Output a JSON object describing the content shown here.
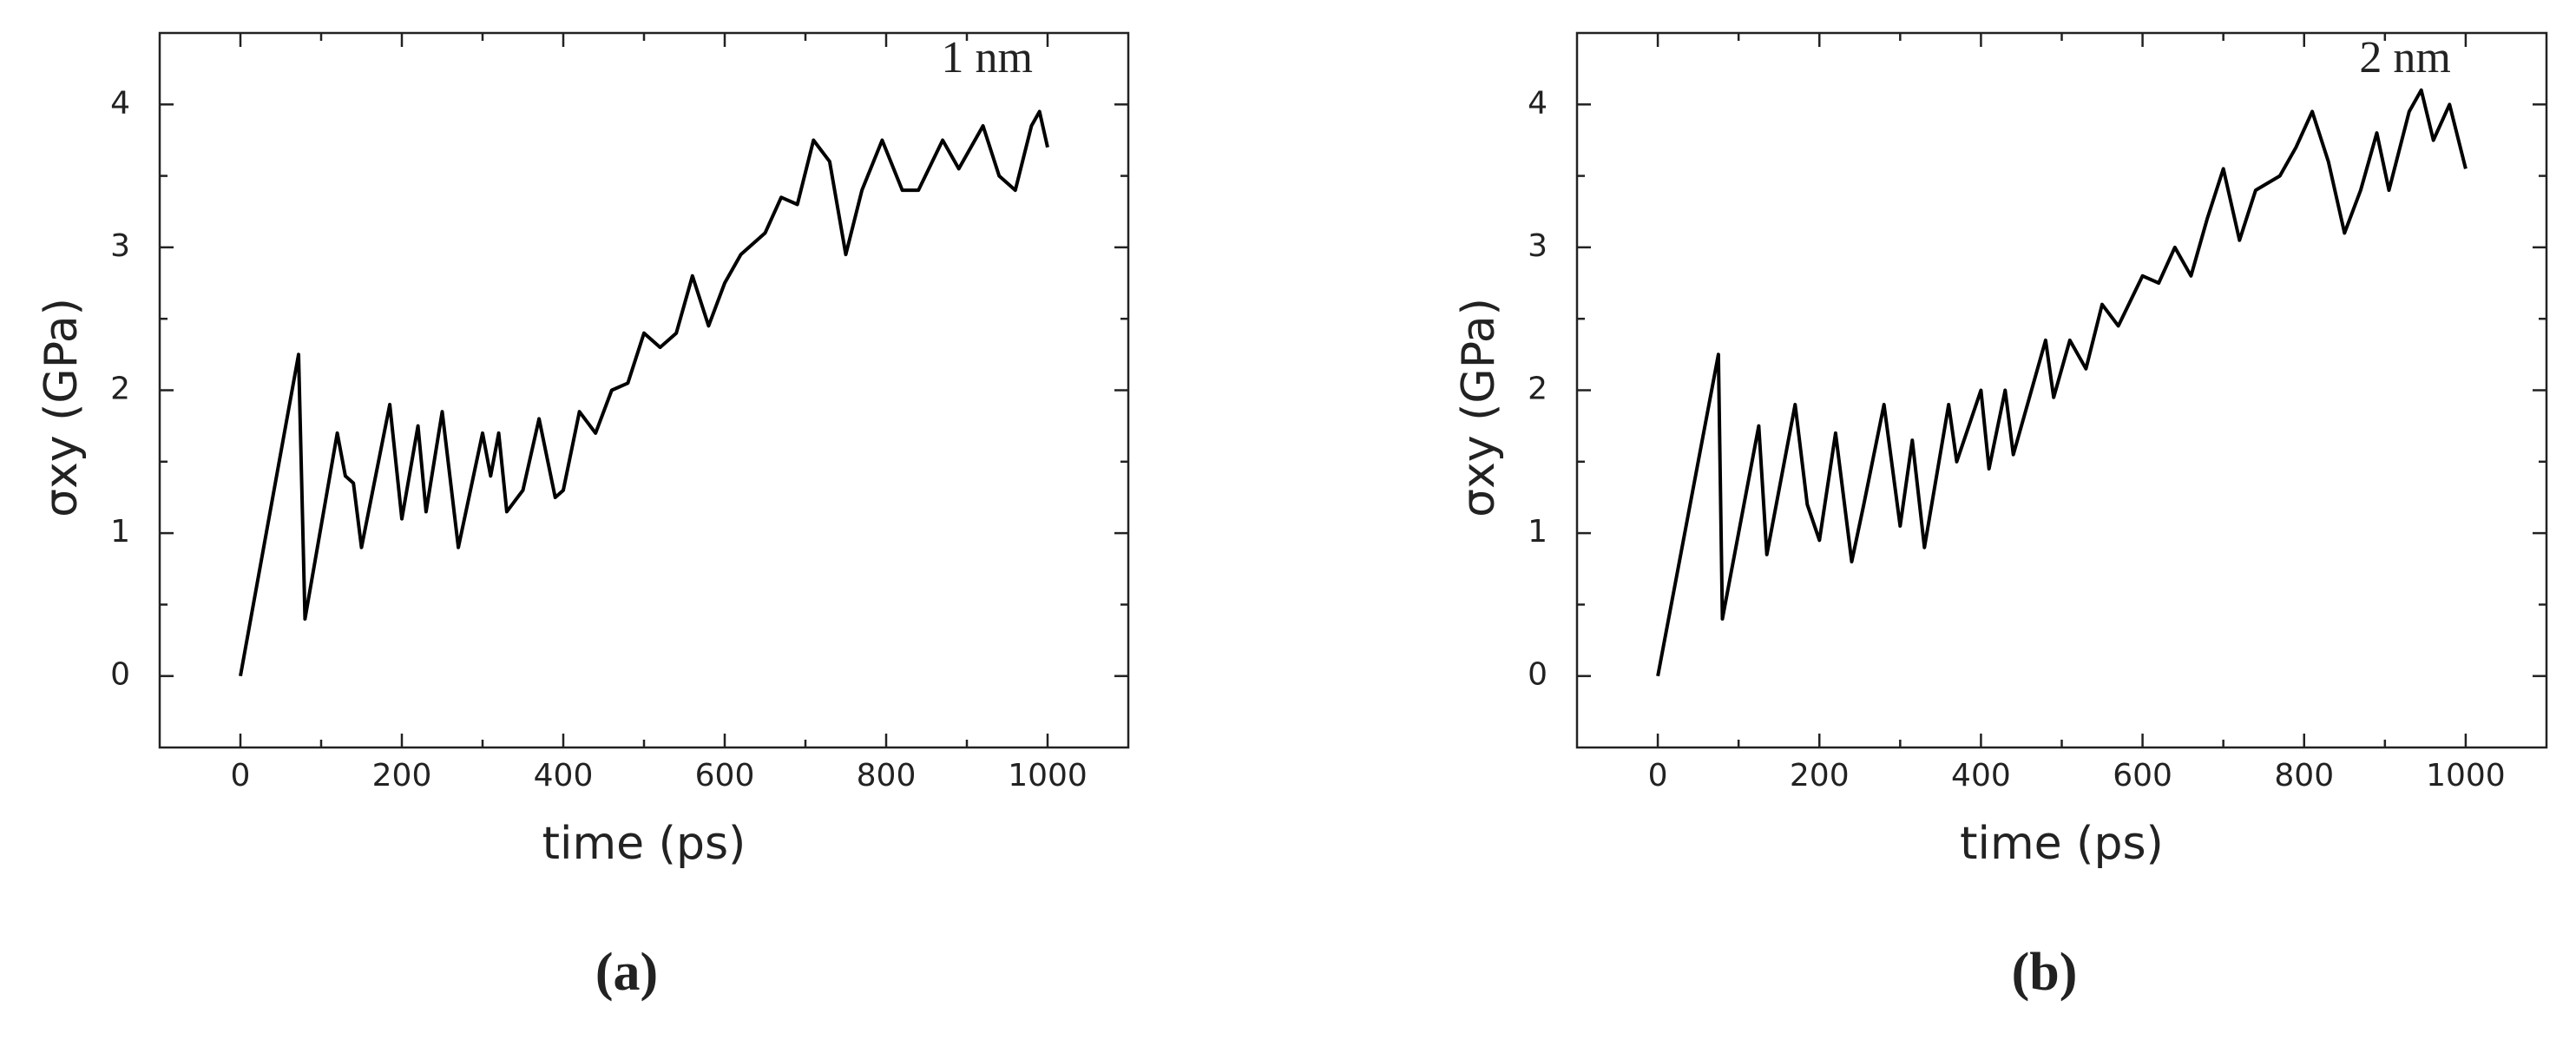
{
  "chart_data": [
    {
      "type": "line",
      "xlabel": "time (ps)",
      "ylabel": "σxy (GPa)",
      "annotation": "1 nm",
      "panel_label": "(a)",
      "color": "#000000",
      "xlim": [
        -100,
        1100
      ],
      "ylim": [
        -0.5,
        4.5
      ],
      "xticks": [
        0,
        200,
        400,
        600,
        800,
        1000
      ],
      "yticks": [
        0,
        1,
        2,
        3,
        4
      ],
      "xminorticks": [
        100,
        300,
        500,
        700,
        900
      ],
      "yminorticks": [
        0.5,
        1.5,
        2.5,
        3.5
      ],
      "x": [
        0,
        72,
        80,
        120,
        130,
        140,
        150,
        185,
        200,
        220,
        230,
        250,
        270,
        300,
        310,
        320,
        330,
        350,
        370,
        390,
        400,
        420,
        440,
        460,
        480,
        500,
        520,
        540,
        560,
        580,
        600,
        620,
        650,
        670,
        690,
        710,
        730,
        750,
        770,
        795,
        820,
        840,
        870,
        890,
        920,
        940,
        960,
        980,
        990,
        1000
      ],
      "values": [
        0,
        2.25,
        0.4,
        1.7,
        1.4,
        1.35,
        0.9,
        1.9,
        1.1,
        1.75,
        1.15,
        1.85,
        0.9,
        1.7,
        1.4,
        1.7,
        1.15,
        1.3,
        1.8,
        1.25,
        1.3,
        1.85,
        1.7,
        2.0,
        2.05,
        2.4,
        2.3,
        2.4,
        2.8,
        2.45,
        2.75,
        2.95,
        3.1,
        3.35,
        3.3,
        3.75,
        3.6,
        2.95,
        3.4,
        3.75,
        3.4,
        3.4,
        3.75,
        3.55,
        3.85,
        3.5,
        3.4,
        3.85,
        3.95,
        3.7
      ]
    },
    {
      "type": "line",
      "xlabel": "time (ps)",
      "ylabel": "σxy (GPa)",
      "annotation": "2 nm",
      "panel_label": "(b)",
      "color": "#000000",
      "xlim": [
        -100,
        1100
      ],
      "ylim": [
        -0.5,
        4.5
      ],
      "xticks": [
        0,
        200,
        400,
        600,
        800,
        1000
      ],
      "yticks": [
        0,
        1,
        2,
        3,
        4
      ],
      "xminorticks": [
        100,
        300,
        500,
        700,
        900
      ],
      "yminorticks": [
        0.5,
        1.5,
        2.5,
        3.5
      ],
      "x": [
        0,
        75,
        80,
        125,
        135,
        170,
        185,
        200,
        220,
        240,
        255,
        280,
        300,
        315,
        330,
        360,
        370,
        400,
        410,
        430,
        440,
        470,
        480,
        490,
        510,
        530,
        550,
        570,
        600,
        620,
        640,
        660,
        680,
        700,
        720,
        740,
        770,
        790,
        810,
        830,
        850,
        870,
        890,
        905,
        930,
        945,
        960,
        980,
        1000
      ],
      "values": [
        0,
        2.25,
        0.4,
        1.75,
        0.85,
        1.9,
        1.2,
        0.95,
        1.7,
        0.8,
        1.2,
        1.9,
        1.05,
        1.65,
        0.9,
        1.9,
        1.5,
        2.0,
        1.45,
        2.0,
        1.55,
        2.15,
        2.35,
        1.95,
        2.35,
        2.15,
        2.6,
        2.45,
        2.8,
        2.75,
        3.0,
        2.8,
        3.2,
        3.55,
        3.05,
        3.4,
        3.5,
        3.7,
        3.95,
        3.6,
        3.1,
        3.4,
        3.8,
        3.4,
        3.95,
        4.1,
        3.75,
        4.0,
        3.55
      ]
    }
  ]
}
